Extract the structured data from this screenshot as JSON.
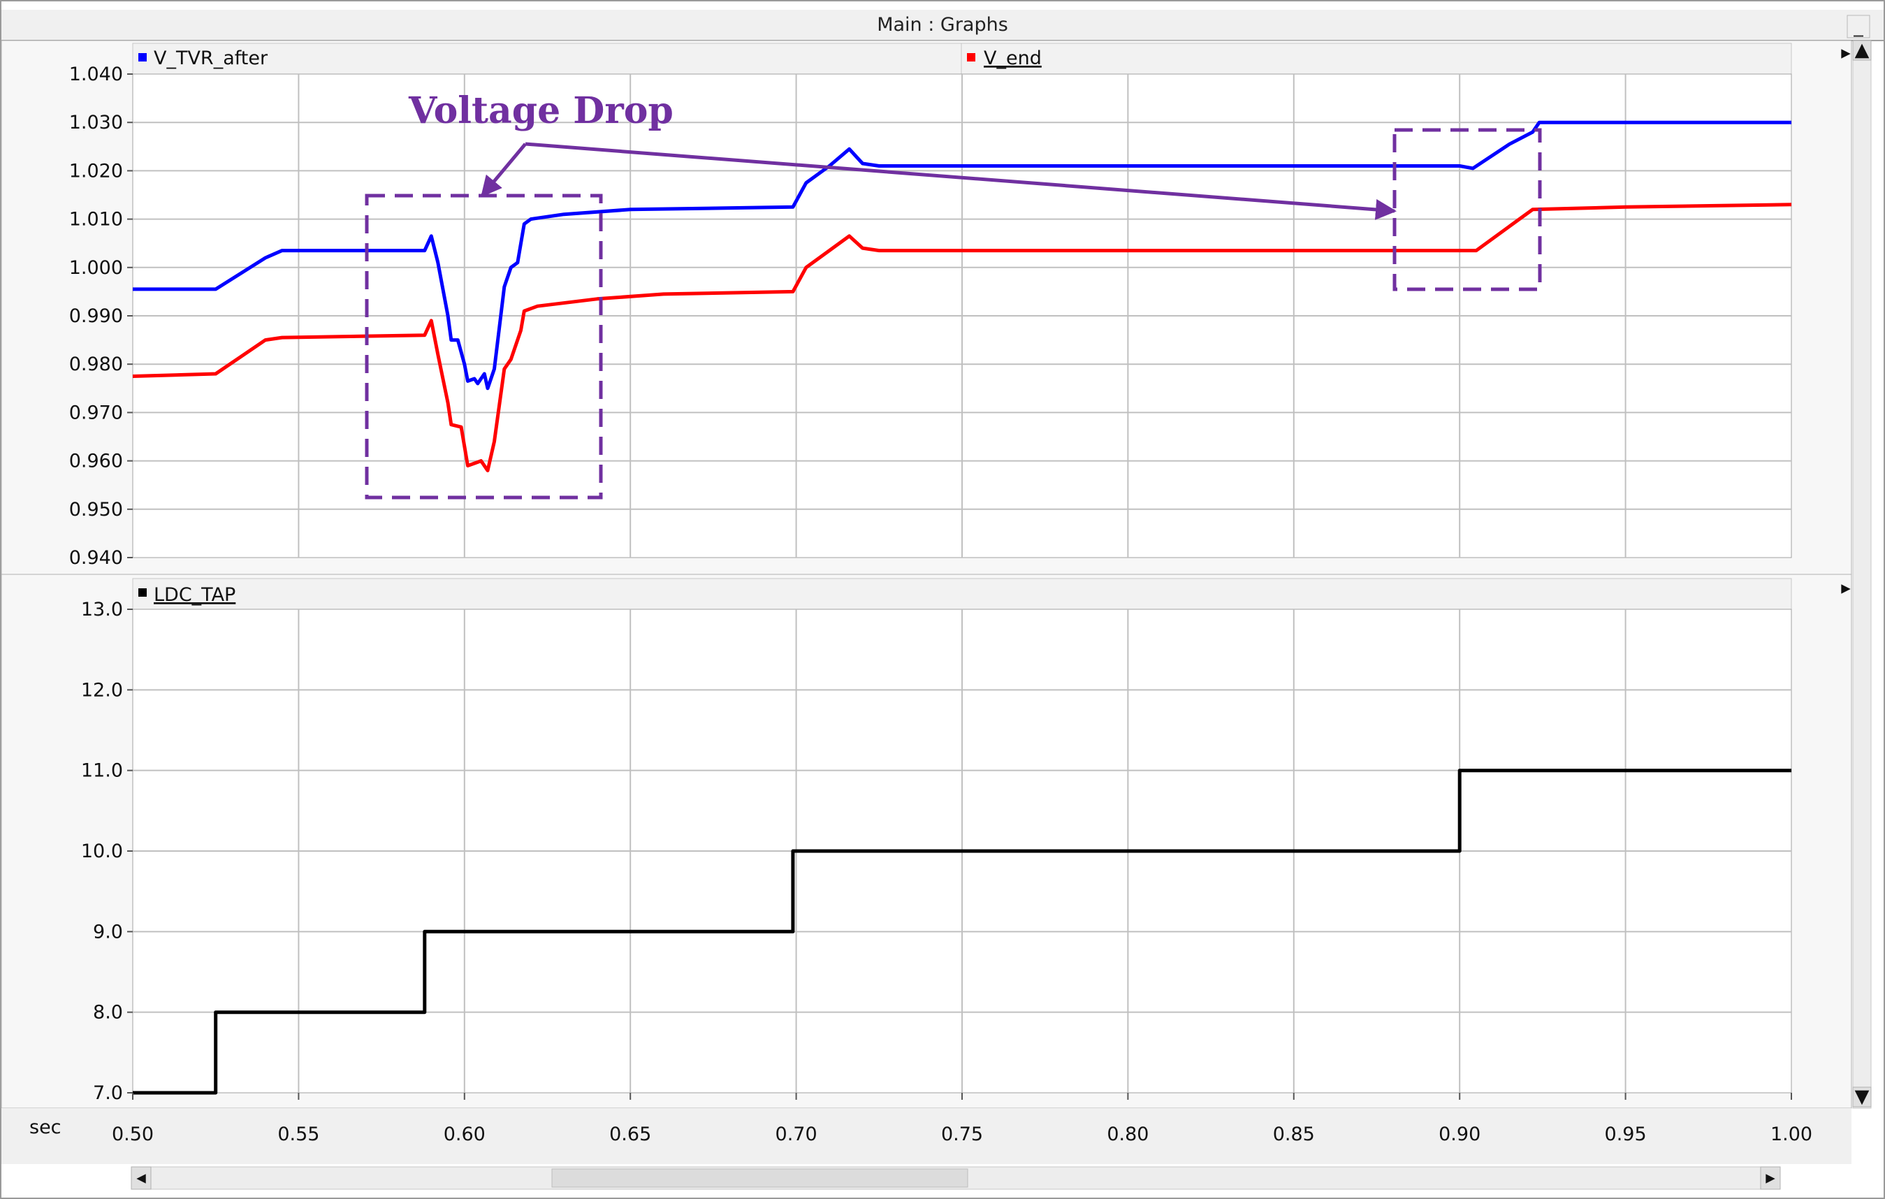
{
  "window": {
    "title": "Main : Graphs"
  },
  "controls": {
    "minimize_glyph": "_",
    "expand_right_glyph": "▸",
    "scroll_up_glyph": "▲",
    "scroll_down_glyph": "▼",
    "scroll_left_glyph": "◂",
    "scroll_right_glyph": "▸"
  },
  "colors": {
    "annotation": "#7030A0",
    "series_blue": "#0000FF",
    "series_red": "#FF0000",
    "series_black": "#000000",
    "grid": "#C0C0C0"
  },
  "annotation": {
    "label": "Voltage Drop"
  },
  "chart_data": [
    {
      "type": "line",
      "xlabel": "sec",
      "xlim": [
        0.5,
        1.0
      ],
      "xticks": [
        "0.50",
        "0.55",
        "0.60",
        "0.65",
        "0.70",
        "0.75",
        "0.80",
        "0.85",
        "0.90",
        "0.95",
        "1.00"
      ],
      "ylim": [
        0.94,
        1.04
      ],
      "yticks": [
        "1.040",
        "1.030",
        "1.020",
        "1.010",
        "1.000",
        "0.990",
        "0.980",
        "0.970",
        "0.960",
        "0.950",
        "0.940"
      ],
      "grid": true,
      "legend": "top",
      "series": [
        {
          "name": "V_TVR_after",
          "color": "blue",
          "points": [
            [
              0.5,
              0.9955
            ],
            [
              0.525,
              0.9955
            ],
            [
              0.54,
              1.002
            ],
            [
              0.545,
              1.0035
            ],
            [
              0.588,
              1.0035
            ],
            [
              0.59,
              1.0065
            ],
            [
              0.592,
              1.001
            ],
            [
              0.595,
              0.99
            ],
            [
              0.596,
              0.985
            ],
            [
              0.598,
              0.985
            ],
            [
              0.6,
              0.98
            ],
            [
              0.601,
              0.9765
            ],
            [
              0.603,
              0.977
            ],
            [
              0.604,
              0.976
            ],
            [
              0.606,
              0.978
            ],
            [
              0.607,
              0.975
            ],
            [
              0.609,
              0.979
            ],
            [
              0.612,
              0.996
            ],
            [
              0.614,
              1.0
            ],
            [
              0.616,
              1.001
            ],
            [
              0.618,
              1.009
            ],
            [
              0.62,
              1.01
            ],
            [
              0.63,
              1.011
            ],
            [
              0.65,
              1.012
            ],
            [
              0.699,
              1.0125
            ],
            [
              0.703,
              1.0175
            ],
            [
              0.71,
              1.021
            ],
            [
              0.716,
              1.0245
            ],
            [
              0.72,
              1.0215
            ],
            [
              0.725,
              1.021
            ],
            [
              0.8,
              1.021
            ],
            [
              0.9,
              1.021
            ],
            [
              0.904,
              1.0205
            ],
            [
              0.915,
              1.0255
            ],
            [
              0.922,
              1.028
            ],
            [
              0.924,
              1.03
            ],
            [
              0.95,
              1.03
            ],
            [
              1.0,
              1.03
            ]
          ]
        },
        {
          "name": "V_end",
          "color": "red",
          "points": [
            [
              0.5,
              0.9775
            ],
            [
              0.525,
              0.978
            ],
            [
              0.54,
              0.985
            ],
            [
              0.545,
              0.9855
            ],
            [
              0.588,
              0.986
            ],
            [
              0.59,
              0.989
            ],
            [
              0.592,
              0.982
            ],
            [
              0.595,
              0.972
            ],
            [
              0.596,
              0.9675
            ],
            [
              0.599,
              0.967
            ],
            [
              0.601,
              0.959
            ],
            [
              0.603,
              0.9595
            ],
            [
              0.605,
              0.96
            ],
            [
              0.607,
              0.958
            ],
            [
              0.609,
              0.964
            ],
            [
              0.612,
              0.979
            ],
            [
              0.614,
              0.981
            ],
            [
              0.617,
              0.987
            ],
            [
              0.618,
              0.991
            ],
            [
              0.622,
              0.992
            ],
            [
              0.64,
              0.9935
            ],
            [
              0.66,
              0.9945
            ],
            [
              0.699,
              0.995
            ],
            [
              0.703,
              1.0
            ],
            [
              0.716,
              1.0065
            ],
            [
              0.72,
              1.004
            ],
            [
              0.725,
              1.0035
            ],
            [
              0.8,
              1.0035
            ],
            [
              0.9,
              1.0035
            ],
            [
              0.905,
              1.0035
            ],
            [
              0.915,
              1.0085
            ],
            [
              0.922,
              1.012
            ],
            [
              0.95,
              1.0125
            ],
            [
              1.0,
              1.013
            ]
          ]
        }
      ]
    },
    {
      "type": "line",
      "xlabel": "sec",
      "xlim": [
        0.5,
        1.0
      ],
      "xticks": [
        "0.50",
        "0.55",
        "0.60",
        "0.65",
        "0.70",
        "0.75",
        "0.80",
        "0.85",
        "0.90",
        "0.95",
        "1.00"
      ],
      "ylim": [
        7.0,
        13.0
      ],
      "yticks": [
        "13.0",
        "12.0",
        "11.0",
        "10.0",
        "9.0",
        "8.0",
        "7.0"
      ],
      "grid": true,
      "legend": "top",
      "series": [
        {
          "name": "LDC_TAP",
          "color": "black",
          "step": true,
          "points": [
            [
              0.5,
              7.0
            ],
            [
              0.525,
              7.0
            ],
            [
              0.525,
              8.0
            ],
            [
              0.588,
              8.0
            ],
            [
              0.588,
              9.0
            ],
            [
              0.699,
              9.0
            ],
            [
              0.699,
              10.0
            ],
            [
              0.9,
              10.0
            ],
            [
              0.9,
              11.0
            ],
            [
              1.0,
              11.0
            ]
          ]
        }
      ]
    }
  ]
}
